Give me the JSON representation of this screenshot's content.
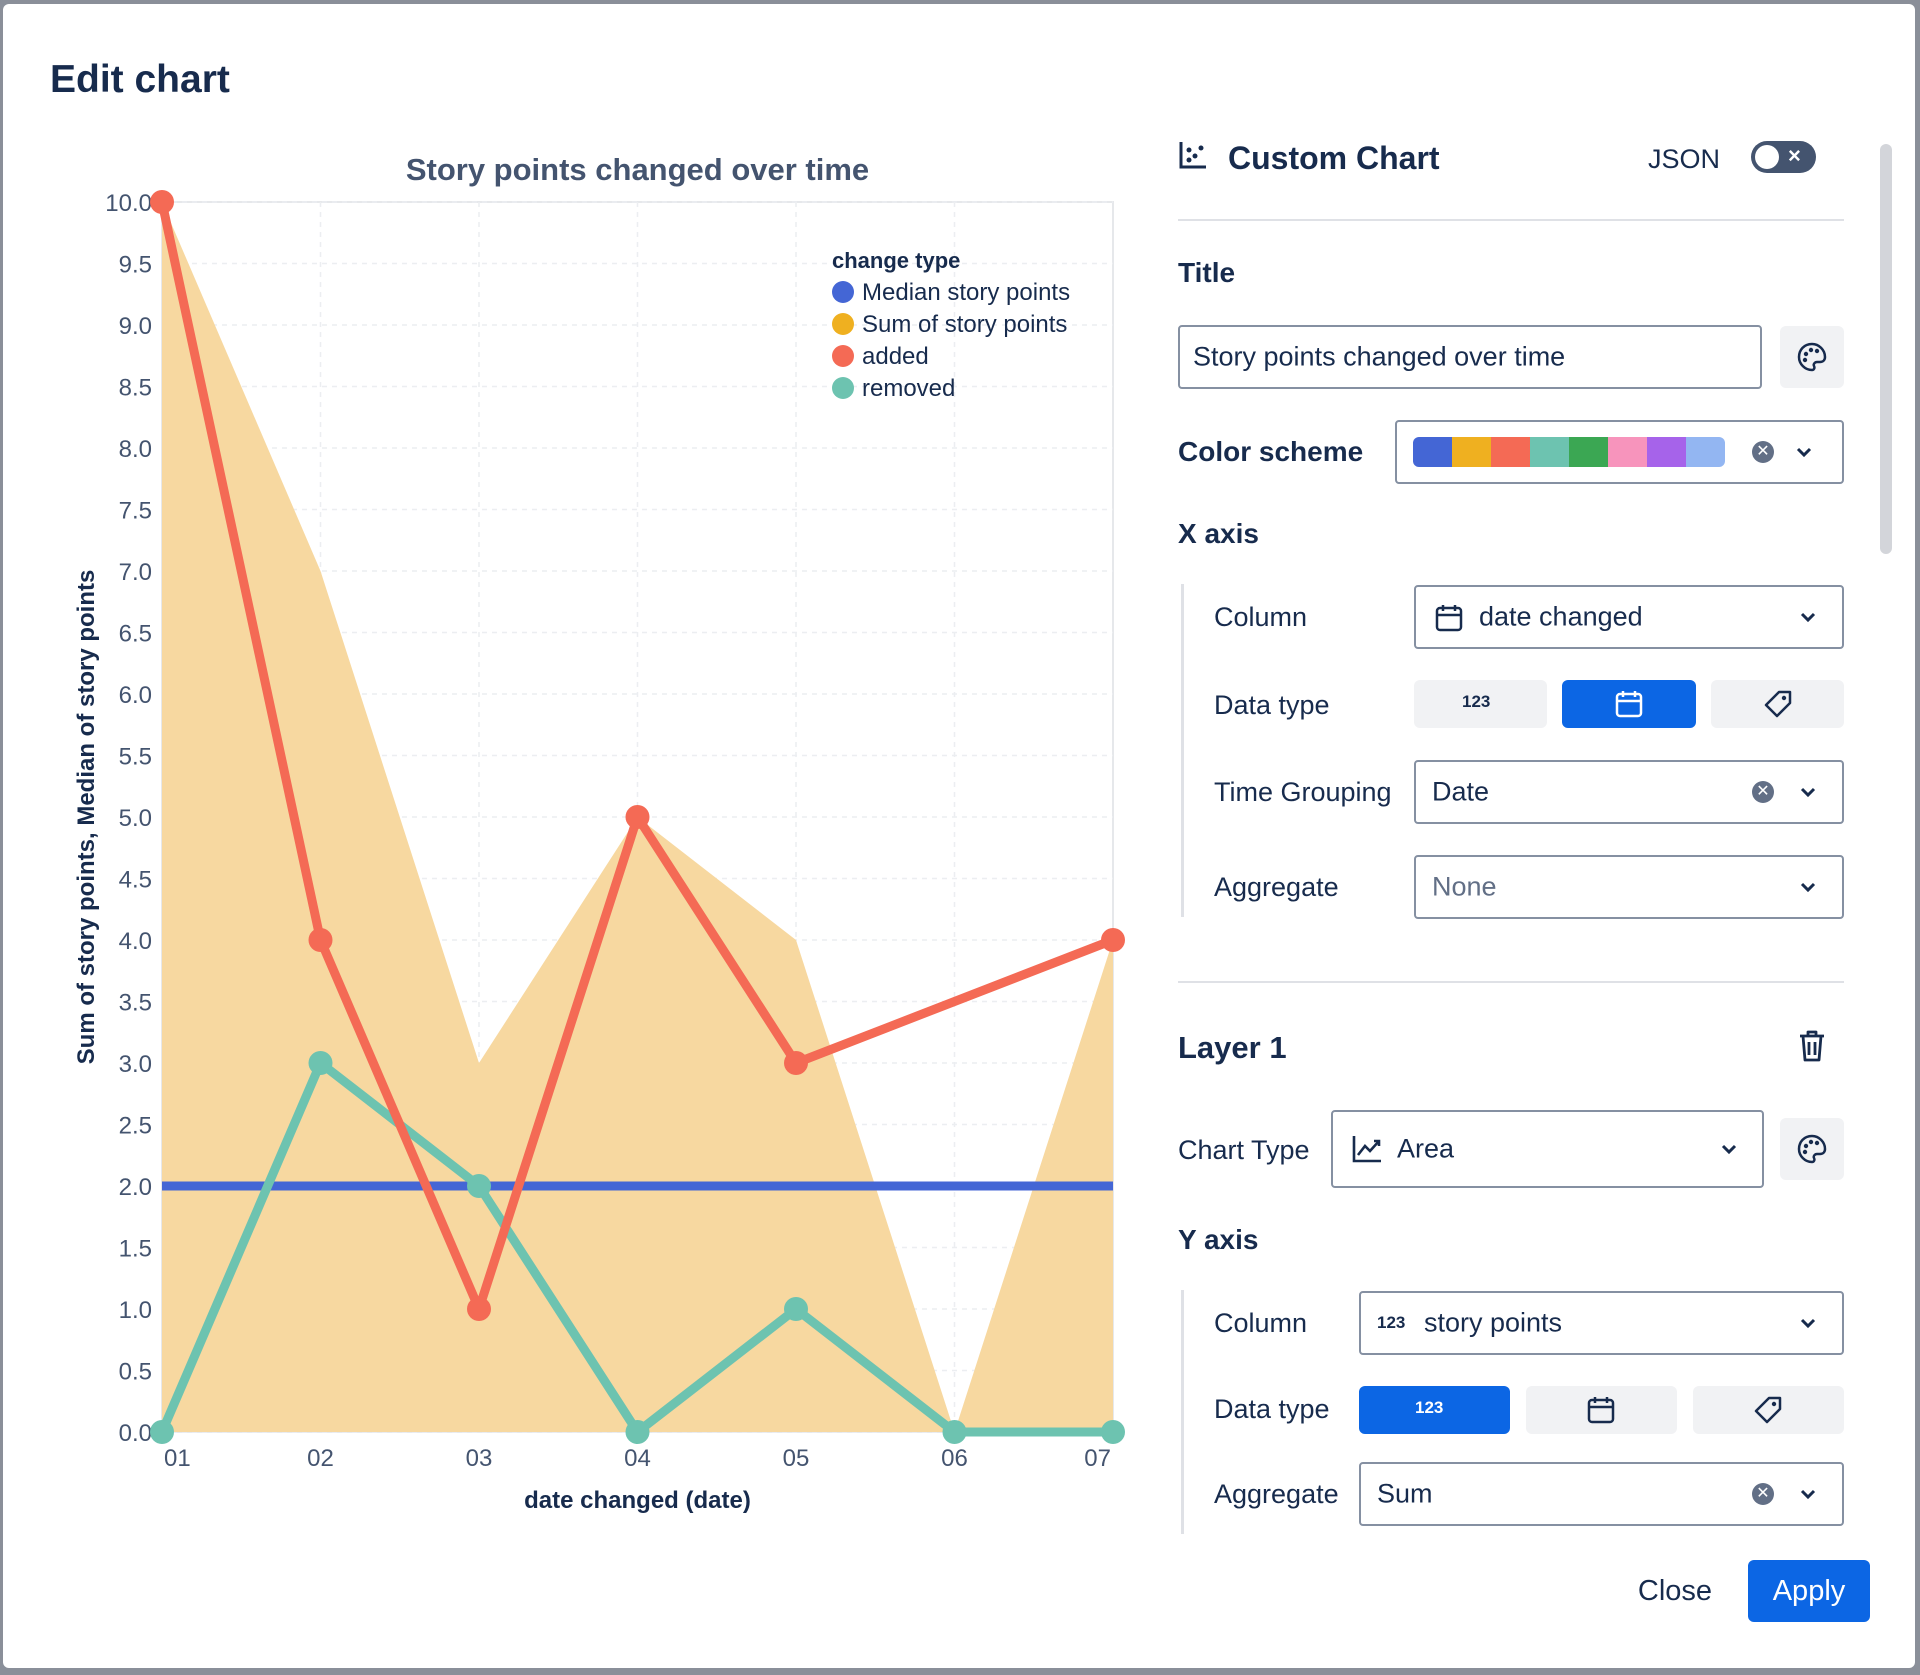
{
  "dialog": {
    "title": "Edit chart"
  },
  "panel": {
    "header": "Custom Chart",
    "json_label": "JSON",
    "title_section": "Title",
    "title_value": "Story points changed over time",
    "color_scheme_label": "Color scheme",
    "color_scheme": [
      "#4466d5",
      "#efb020",
      "#f46a55",
      "#6dc3b0",
      "#3ba753",
      "#f794bc",
      "#a663ea",
      "#93b6f2"
    ],
    "x_axis": {
      "label": "X axis",
      "column_label": "Column",
      "column_value": "date changed",
      "data_type_label": "Data type",
      "data_type_options": [
        "123",
        "calendar-icon",
        "tag-icon"
      ],
      "data_type_selected": "calendar-icon",
      "time_grouping_label": "Time Grouping",
      "time_grouping_value": "Date",
      "aggregate_label": "Aggregate",
      "aggregate_value": "None"
    },
    "layer": {
      "label": "Layer 1",
      "chart_type_label": "Chart Type",
      "chart_type_value": "Area"
    },
    "y_axis": {
      "label": "Y axis",
      "column_label": "Column",
      "column_badge": "123",
      "column_value": "story points",
      "data_type_label": "Data type",
      "data_type_options": [
        "123",
        "calendar-icon",
        "tag-icon"
      ],
      "data_type_selected": "123",
      "aggregate_label": "Aggregate",
      "aggregate_value": "Sum"
    }
  },
  "footer": {
    "close_label": "Close",
    "apply_label": "Apply"
  },
  "chart_data": {
    "type": "area",
    "title": "Story points changed over time",
    "xlabel": "date changed (date)",
    "ylabel": "Sum of story points, Median of story points",
    "categories": [
      "01",
      "02",
      "03",
      "04",
      "05",
      "06",
      "07"
    ],
    "ylim": [
      0,
      10
    ],
    "yticks": [
      "0.0",
      "0.5",
      "1.0",
      "1.5",
      "2.0",
      "2.5",
      "3.0",
      "3.5",
      "4.0",
      "4.5",
      "5.0",
      "5.5",
      "6.0",
      "6.5",
      "7.0",
      "7.5",
      "8.0",
      "8.5",
      "9.0",
      "9.5",
      "10.0"
    ],
    "grid": true,
    "legend": {
      "title": "change type",
      "position": "top-right",
      "entries": [
        {
          "name": "Median story points",
          "color": "#4466d5"
        },
        {
          "name": "Sum of story points",
          "color": "#efb020"
        },
        {
          "name": "added",
          "color": "#f46a55"
        },
        {
          "name": "removed",
          "color": "#6dc3b0"
        }
      ]
    },
    "series": [
      {
        "name": "Sum of story points",
        "kind": "area",
        "color": "#f7d8a0",
        "values": [
          10,
          7,
          3,
          5,
          4,
          0,
          4
        ]
      },
      {
        "name": "added",
        "kind": "line",
        "color": "#f46a55",
        "values": [
          10,
          4,
          1,
          5,
          3,
          null,
          4
        ]
      },
      {
        "name": "removed",
        "kind": "line",
        "color": "#6dc3b0",
        "values": [
          0,
          3,
          2,
          0,
          1,
          0,
          0
        ]
      },
      {
        "name": "Median story points",
        "kind": "line",
        "color": "#4466d5",
        "values": [
          2,
          2,
          2,
          2,
          2,
          2,
          2
        ]
      }
    ]
  }
}
